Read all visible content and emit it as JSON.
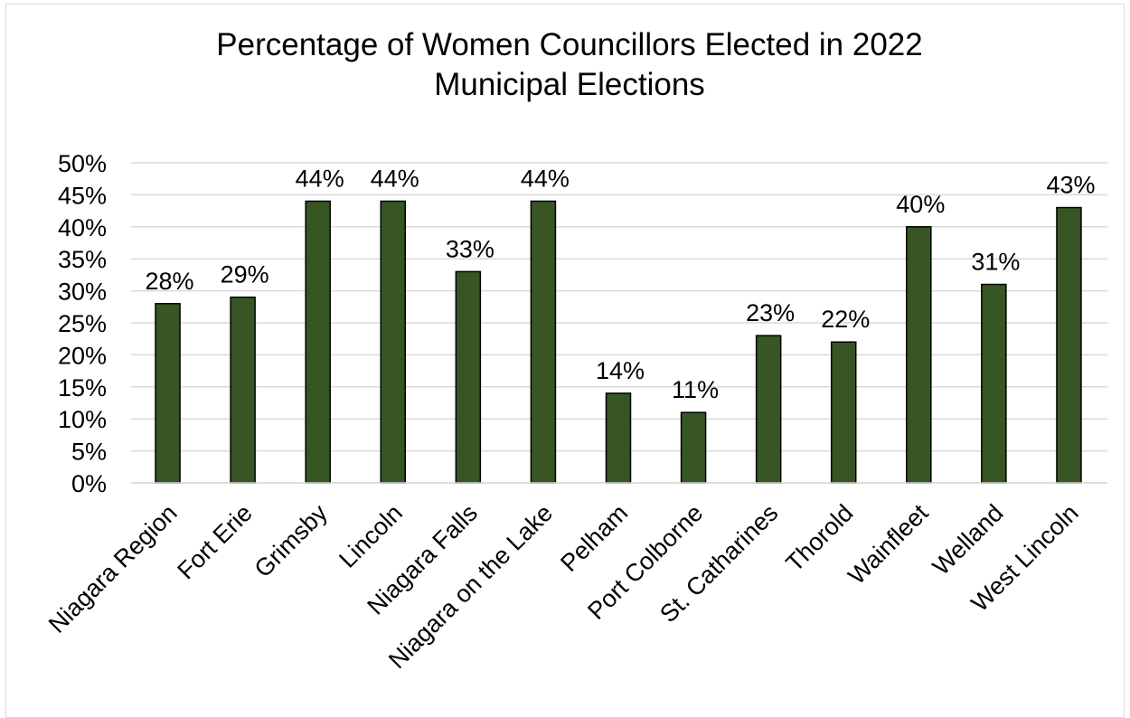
{
  "chart_data": {
    "type": "bar",
    "title_lines": [
      "Percentage of Women Councillors Elected in 2022",
      "Municipal Elections"
    ],
    "xlabel": "",
    "ylabel": "",
    "categories": [
      "Niagara Region",
      "Fort Erie",
      "Grimsby",
      "Lincoln",
      "Niagara Falls",
      "Niagara on the Lake",
      "Pelham",
      "Port Colborne",
      "St. Catharines",
      "Thorold",
      "Wainfleet",
      "Welland",
      "West Lincoln"
    ],
    "values": [
      28,
      29,
      44,
      44,
      33,
      44,
      14,
      11,
      23,
      22,
      40,
      31,
      43
    ],
    "data_labels": [
      "28%",
      "29%",
      "44%",
      "44%",
      "33%",
      "44%",
      "14%",
      "11%",
      "23%",
      "22%",
      "40%",
      "31%",
      "43%"
    ],
    "ylim": [
      0,
      50
    ],
    "yticks": [
      0,
      5,
      10,
      15,
      20,
      25,
      30,
      35,
      40,
      45,
      50
    ],
    "ytick_labels": [
      "0%",
      "5%",
      "10%",
      "15%",
      "20%",
      "25%",
      "30%",
      "35%",
      "40%",
      "45%",
      "50%"
    ],
    "grid": true,
    "legend": "none",
    "bar_color": "#375623",
    "bar_edge_color": "#000000",
    "grid_color": "#d9d9d9"
  }
}
